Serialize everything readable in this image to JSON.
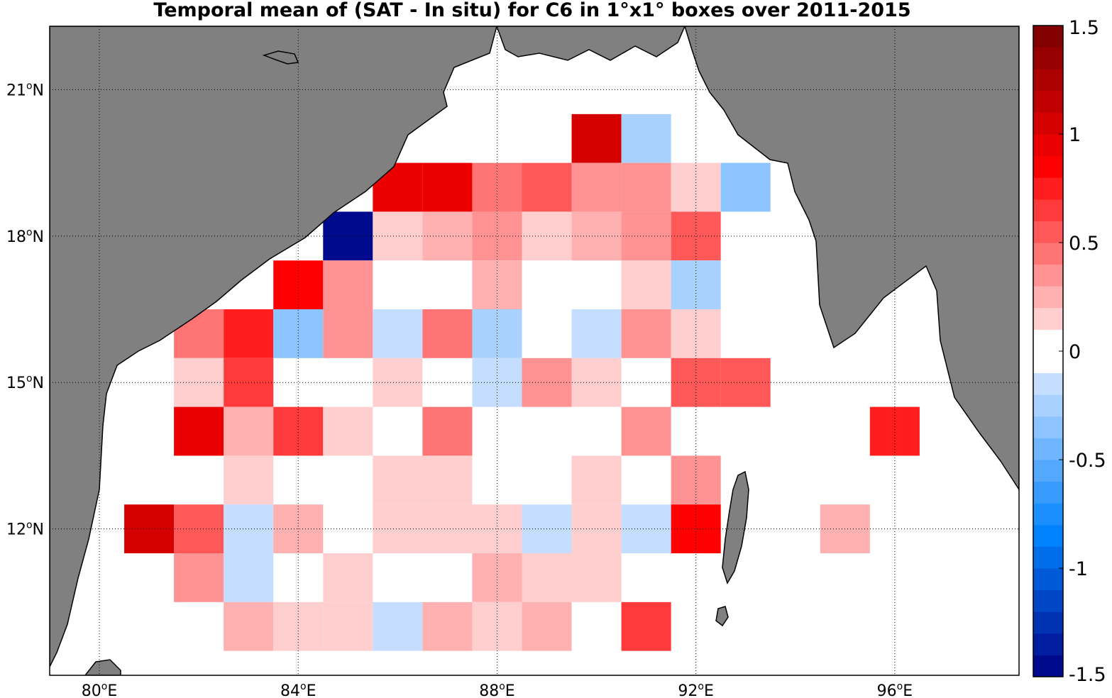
{
  "title": "Temporal mean of (SAT - In situ) for C6 in 1°x1° boxes over 2011-2015",
  "map": {
    "lon_range": [
      79,
      98.5
    ],
    "lat_range": [
      9,
      22.3
    ],
    "land_color": "#808080",
    "ocean_color": "#ffffff",
    "grid": "dotted",
    "lon_ticks": [
      {
        "value": 80,
        "label": "80",
        "unit": "E"
      },
      {
        "value": 84,
        "label": "84",
        "unit": "E"
      },
      {
        "value": 88,
        "label": "88",
        "unit": "E"
      },
      {
        "value": 92,
        "label": "92",
        "unit": "E"
      },
      {
        "value": 96,
        "label": "96",
        "unit": "E"
      }
    ],
    "lat_ticks": [
      {
        "value": 12,
        "label": "12",
        "unit": "N"
      },
      {
        "value": 15,
        "label": "15",
        "unit": "N"
      },
      {
        "value": 18,
        "label": "18",
        "unit": "N"
      },
      {
        "value": 21,
        "label": "21",
        "unit": "N"
      }
    ]
  },
  "colorbar": {
    "range": [
      -1.5,
      1.5
    ],
    "levels": 30,
    "ticks": [
      {
        "value": 1.5,
        "label": "1.5"
      },
      {
        "value": 1,
        "label": "1"
      },
      {
        "value": 0.5,
        "label": "0.5"
      },
      {
        "value": 0,
        "label": "0"
      },
      {
        "value": -0.5,
        "label": "-0.5"
      },
      {
        "value": -1,
        "label": "-1"
      },
      {
        "value": -1.5,
        "label": "-1.5"
      }
    ]
  },
  "cells": [
    {
      "lon": 90,
      "lat": 20,
      "value": 1.05
    },
    {
      "lon": 91,
      "lat": 20,
      "value": -0.25
    },
    {
      "lon": 86,
      "lat": 19,
      "value": 0.95
    },
    {
      "lon": 87,
      "lat": 19,
      "value": 0.95
    },
    {
      "lon": 88,
      "lat": 19,
      "value": 0.45
    },
    {
      "lon": 89,
      "lat": 19,
      "value": 0.55
    },
    {
      "lon": 90,
      "lat": 19,
      "value": 0.35
    },
    {
      "lon": 91,
      "lat": 19,
      "value": 0.35
    },
    {
      "lon": 92,
      "lat": 19,
      "value": 0.15
    },
    {
      "lon": 93,
      "lat": 19,
      "value": -0.35
    },
    {
      "lon": 85,
      "lat": 18,
      "value": -1.45
    },
    {
      "lon": 86,
      "lat": 18,
      "value": 0.15
    },
    {
      "lon": 87,
      "lat": 18,
      "value": 0.25
    },
    {
      "lon": 88,
      "lat": 18,
      "value": 0.4
    },
    {
      "lon": 89,
      "lat": 18,
      "value": 0.15
    },
    {
      "lon": 90,
      "lat": 18,
      "value": 0.25
    },
    {
      "lon": 91,
      "lat": 18,
      "value": 0.4
    },
    {
      "lon": 92,
      "lat": 18,
      "value": 0.5
    },
    {
      "lon": 84,
      "lat": 17,
      "value": 0.85
    },
    {
      "lon": 85,
      "lat": 17,
      "value": 0.35
    },
    {
      "lon": 88,
      "lat": 17,
      "value": 0.25
    },
    {
      "lon": 91,
      "lat": 17,
      "value": 0.15
    },
    {
      "lon": 92,
      "lat": 17,
      "value": -0.25
    },
    {
      "lon": 82,
      "lat": 16,
      "value": 0.45
    },
    {
      "lon": 83,
      "lat": 16,
      "value": 0.75
    },
    {
      "lon": 84,
      "lat": 16,
      "value": -0.4
    },
    {
      "lon": 85,
      "lat": 16,
      "value": 0.35
    },
    {
      "lon": 86,
      "lat": 16,
      "value": -0.1
    },
    {
      "lon": 87,
      "lat": 16,
      "value": 0.45
    },
    {
      "lon": 88,
      "lat": 16,
      "value": -0.25
    },
    {
      "lon": 90,
      "lat": 16,
      "value": -0.2
    },
    {
      "lon": 91,
      "lat": 16,
      "value": 0.35
    },
    {
      "lon": 92,
      "lat": 16,
      "value": 0.15
    },
    {
      "lon": 82,
      "lat": 15,
      "value": 0.15
    },
    {
      "lon": 83,
      "lat": 15,
      "value": 0.65
    },
    {
      "lon": 86,
      "lat": 15,
      "value": 0.15
    },
    {
      "lon": 88,
      "lat": 15,
      "value": -0.1
    },
    {
      "lon": 89,
      "lat": 15,
      "value": 0.4
    },
    {
      "lon": 90,
      "lat": 15,
      "value": 0.15
    },
    {
      "lon": 92,
      "lat": 15,
      "value": 0.5
    },
    {
      "lon": 93,
      "lat": 15,
      "value": 0.5
    },
    {
      "lon": 82,
      "lat": 14,
      "value": 0.95
    },
    {
      "lon": 83,
      "lat": 14,
      "value": 0.25
    },
    {
      "lon": 84,
      "lat": 14,
      "value": 0.6
    },
    {
      "lon": 85,
      "lat": 14,
      "value": 0.15
    },
    {
      "lon": 87,
      "lat": 14,
      "value": 0.45
    },
    {
      "lon": 91,
      "lat": 14,
      "value": 0.35
    },
    {
      "lon": 96,
      "lat": 14,
      "value": 0.75
    },
    {
      "lon": 83,
      "lat": 13,
      "value": 0.15
    },
    {
      "lon": 86,
      "lat": 13,
      "value": 0.15
    },
    {
      "lon": 87,
      "lat": 13,
      "value": 0.15
    },
    {
      "lon": 90,
      "lat": 13,
      "value": 0.15
    },
    {
      "lon": 92,
      "lat": 13,
      "value": 0.35
    },
    {
      "lon": 81,
      "lat": 12,
      "value": 1.05
    },
    {
      "lon": 82,
      "lat": 12,
      "value": 0.5
    },
    {
      "lon": 83,
      "lat": 12,
      "value": -0.1
    },
    {
      "lon": 84,
      "lat": 12,
      "value": 0.25
    },
    {
      "lon": 86,
      "lat": 12,
      "value": 0.15
    },
    {
      "lon": 87,
      "lat": 12,
      "value": 0.15
    },
    {
      "lon": 88,
      "lat": 12,
      "value": 0.15
    },
    {
      "lon": 89,
      "lat": 12,
      "value": -0.2
    },
    {
      "lon": 90,
      "lat": 12,
      "value": 0.15
    },
    {
      "lon": 91,
      "lat": 12,
      "value": -0.1
    },
    {
      "lon": 92,
      "lat": 12,
      "value": 0.85
    },
    {
      "lon": 95,
      "lat": 12,
      "value": 0.25
    },
    {
      "lon": 82,
      "lat": 11,
      "value": 0.4
    },
    {
      "lon": 83,
      "lat": 11,
      "value": -0.1
    },
    {
      "lon": 85,
      "lat": 11,
      "value": 0.15
    },
    {
      "lon": 88,
      "lat": 11,
      "value": 0.25
    },
    {
      "lon": 89,
      "lat": 11,
      "value": 0.15
    },
    {
      "lon": 90,
      "lat": 11,
      "value": 0.15
    },
    {
      "lon": 83,
      "lat": 10,
      "value": 0.25
    },
    {
      "lon": 84,
      "lat": 10,
      "value": 0.15
    },
    {
      "lon": 85,
      "lat": 10,
      "value": 0.15
    },
    {
      "lon": 86,
      "lat": 10,
      "value": -0.1
    },
    {
      "lon": 87,
      "lat": 10,
      "value": 0.25
    },
    {
      "lon": 88,
      "lat": 10,
      "value": 0.15
    },
    {
      "lon": 89,
      "lat": 10,
      "value": 0.25
    },
    {
      "lon": 91,
      "lat": 10,
      "value": 0.6
    }
  ]
}
